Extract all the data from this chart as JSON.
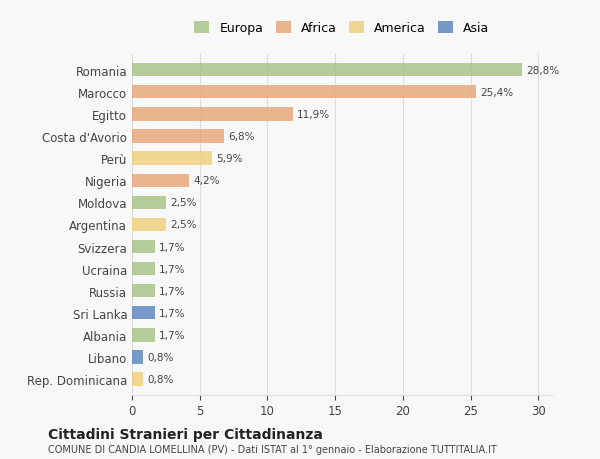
{
  "categories": [
    "Romania",
    "Marocco",
    "Egitto",
    "Costa d'Avorio",
    "Perù",
    "Nigeria",
    "Moldova",
    "Argentina",
    "Svizzera",
    "Ucraina",
    "Russia",
    "Sri Lanka",
    "Albania",
    "Libano",
    "Rep. Dominicana"
  ],
  "values": [
    28.8,
    25.4,
    11.9,
    6.8,
    5.9,
    4.2,
    2.5,
    2.5,
    1.7,
    1.7,
    1.7,
    1.7,
    1.7,
    0.8,
    0.8
  ],
  "labels": [
    "28,8%",
    "25,4%",
    "11,9%",
    "6,8%",
    "5,9%",
    "4,2%",
    "2,5%",
    "2,5%",
    "1,7%",
    "1,7%",
    "1,7%",
    "1,7%",
    "1,7%",
    "0,8%",
    "0,8%"
  ],
  "continents": [
    "Europa",
    "Africa",
    "Africa",
    "Africa",
    "America",
    "Africa",
    "Europa",
    "America",
    "Europa",
    "Europa",
    "Europa",
    "Asia",
    "Europa",
    "Asia",
    "America"
  ],
  "colors": {
    "Europa": "#a8c48a",
    "Africa": "#e8a87c",
    "America": "#f0d080",
    "Asia": "#6088c0"
  },
  "legend_order": [
    "Europa",
    "Africa",
    "America",
    "Asia"
  ],
  "title": "Cittadini Stranieri per Cittadinanza",
  "subtitle": "COMUNE DI CANDIA LOMELLINA (PV) - Dati ISTAT al 1° gennaio - Elaborazione TUTTITALIA.IT",
  "xlim": [
    0,
    31
  ],
  "background_color": "#f8f8f8",
  "bar_background": "#ffffff",
  "grid_color": "#dddddd"
}
